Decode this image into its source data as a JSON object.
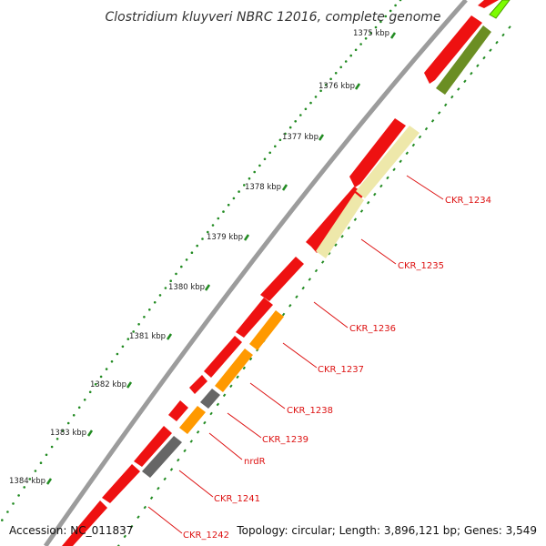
{
  "title": "Clostridium kluyveri NBRC 12016, complete genome",
  "footer": {
    "accession": "Accession: NC_011837",
    "summary": "Topology: circular; Length: 3,896,121 bp; Genes: 3,549"
  },
  "ticks": [
    "1375 kbp",
    "1376 kbp",
    "1377 kbp",
    "1378 kbp",
    "1379 kbp",
    "1380 kbp",
    "1381 kbp",
    "1382 kbp",
    "1383 kbp",
    "1384 kbp"
  ],
  "gene_labels": [
    "CKR_1234",
    "CKR_1235",
    "CKR_1236",
    "CKR_1237",
    "CKR_1238",
    "CKR_1239",
    "nrdR",
    "CKR_1241",
    "CKR_1242"
  ],
  "colors": {
    "cds": "#ee1111",
    "cds_dark": "#aa0000",
    "olive": "#6b8e23",
    "pale_yellow": "#eee8aa",
    "orange": "#ff9900",
    "gray": "#666666",
    "lime": "#7cfc00",
    "backbone": "#999999",
    "tick_dot": "#228b22"
  }
}
